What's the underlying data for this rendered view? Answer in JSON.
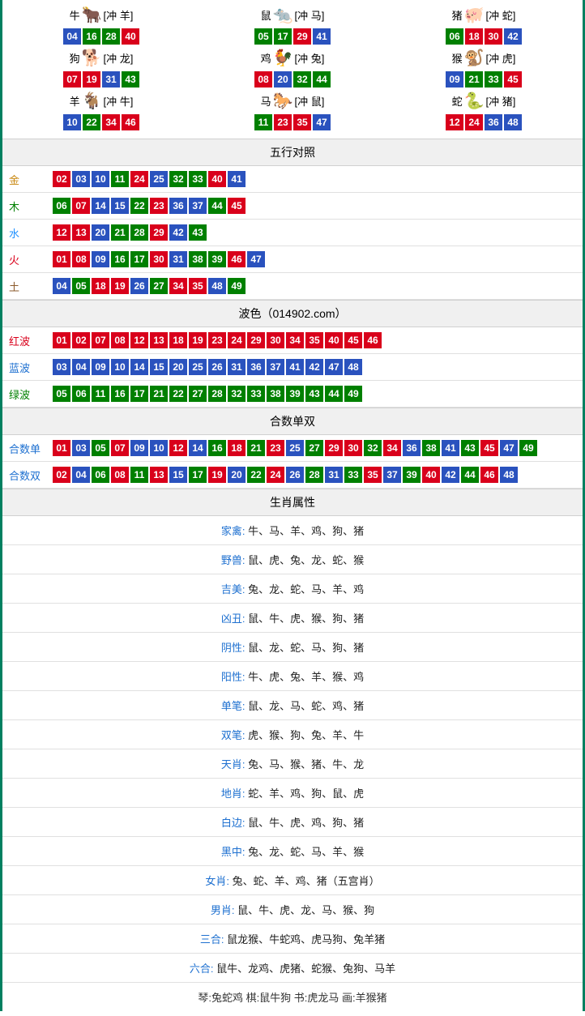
{
  "ball_colors": {
    "red": "#d9001b",
    "green": "#008000",
    "blue": "#2a52be"
  },
  "zodiac": [
    {
      "name": "牛",
      "icon": "🐂",
      "icon_color": "#c0392b",
      "clash": "[冲 羊]",
      "balls": [
        {
          "n": "04",
          "c": "blue"
        },
        {
          "n": "16",
          "c": "green"
        },
        {
          "n": "28",
          "c": "green"
        },
        {
          "n": "40",
          "c": "red"
        }
      ]
    },
    {
      "name": "鼠",
      "icon": "🐀",
      "icon_color": "#2c82c9",
      "clash": "[冲 马]",
      "balls": [
        {
          "n": "05",
          "c": "green"
        },
        {
          "n": "17",
          "c": "green"
        },
        {
          "n": "29",
          "c": "red"
        },
        {
          "n": "41",
          "c": "blue"
        }
      ]
    },
    {
      "name": "猪",
      "icon": "🐖",
      "icon_color": "#d96ba0",
      "clash": "[冲 蛇]",
      "balls": [
        {
          "n": "06",
          "c": "green"
        },
        {
          "n": "18",
          "c": "red"
        },
        {
          "n": "30",
          "c": "red"
        },
        {
          "n": "42",
          "c": "blue"
        }
      ]
    },
    {
      "name": "狗",
      "icon": "🐕",
      "icon_color": "#3498db",
      "clash": "[冲 龙]",
      "balls": [
        {
          "n": "07",
          "c": "red"
        },
        {
          "n": "19",
          "c": "red"
        },
        {
          "n": "31",
          "c": "blue"
        },
        {
          "n": "43",
          "c": "green"
        }
      ]
    },
    {
      "name": "鸡",
      "icon": "🐓",
      "icon_color": "#e67e22",
      "clash": "[冲 兔]",
      "balls": [
        {
          "n": "08",
          "c": "red"
        },
        {
          "n": "20",
          "c": "blue"
        },
        {
          "n": "32",
          "c": "green"
        },
        {
          "n": "44",
          "c": "green"
        }
      ]
    },
    {
      "name": "猴",
      "icon": "🐒",
      "icon_color": "#c0392b",
      "clash": "[冲 虎]",
      "balls": [
        {
          "n": "09",
          "c": "blue"
        },
        {
          "n": "21",
          "c": "green"
        },
        {
          "n": "33",
          "c": "green"
        },
        {
          "n": "45",
          "c": "red"
        }
      ]
    },
    {
      "name": "羊",
      "icon": "🐐",
      "icon_color": "#c8a52b",
      "clash": "[冲 牛]",
      "balls": [
        {
          "n": "10",
          "c": "blue"
        },
        {
          "n": "22",
          "c": "green"
        },
        {
          "n": "34",
          "c": "red"
        },
        {
          "n": "46",
          "c": "red"
        }
      ]
    },
    {
      "name": "马",
      "icon": "🐎",
      "icon_color": "#c0392b",
      "clash": "[冲 鼠]",
      "balls": [
        {
          "n": "11",
          "c": "green"
        },
        {
          "n": "23",
          "c": "red"
        },
        {
          "n": "35",
          "c": "red"
        },
        {
          "n": "47",
          "c": "blue"
        }
      ]
    },
    {
      "name": "蛇",
      "icon": "🐍",
      "icon_color": "#27ae60",
      "clash": "[冲 猪]",
      "balls": [
        {
          "n": "12",
          "c": "red"
        },
        {
          "n": "24",
          "c": "red"
        },
        {
          "n": "36",
          "c": "blue"
        },
        {
          "n": "48",
          "c": "blue"
        }
      ]
    }
  ],
  "sections": {
    "wuxing_title": "五行对照",
    "wuxing": [
      {
        "label": "金",
        "cls": "lbl-gold",
        "balls": [
          {
            "n": "02",
            "c": "red"
          },
          {
            "n": "03",
            "c": "blue"
          },
          {
            "n": "10",
            "c": "blue"
          },
          {
            "n": "11",
            "c": "green"
          },
          {
            "n": "24",
            "c": "red"
          },
          {
            "n": "25",
            "c": "blue"
          },
          {
            "n": "32",
            "c": "green"
          },
          {
            "n": "33",
            "c": "green"
          },
          {
            "n": "40",
            "c": "red"
          },
          {
            "n": "41",
            "c": "blue"
          }
        ]
      },
      {
        "label": "木",
        "cls": "lbl-wood",
        "balls": [
          {
            "n": "06",
            "c": "green"
          },
          {
            "n": "07",
            "c": "red"
          },
          {
            "n": "14",
            "c": "blue"
          },
          {
            "n": "15",
            "c": "blue"
          },
          {
            "n": "22",
            "c": "green"
          },
          {
            "n": "23",
            "c": "red"
          },
          {
            "n": "36",
            "c": "blue"
          },
          {
            "n": "37",
            "c": "blue"
          },
          {
            "n": "44",
            "c": "green"
          },
          {
            "n": "45",
            "c": "red"
          }
        ]
      },
      {
        "label": "水",
        "cls": "lbl-water",
        "balls": [
          {
            "n": "12",
            "c": "red"
          },
          {
            "n": "13",
            "c": "red"
          },
          {
            "n": "20",
            "c": "blue"
          },
          {
            "n": "21",
            "c": "green"
          },
          {
            "n": "28",
            "c": "green"
          },
          {
            "n": "29",
            "c": "red"
          },
          {
            "n": "42",
            "c": "blue"
          },
          {
            "n": "43",
            "c": "green"
          }
        ]
      },
      {
        "label": "火",
        "cls": "lbl-fire",
        "balls": [
          {
            "n": "01",
            "c": "red"
          },
          {
            "n": "08",
            "c": "red"
          },
          {
            "n": "09",
            "c": "blue"
          },
          {
            "n": "16",
            "c": "green"
          },
          {
            "n": "17",
            "c": "green"
          },
          {
            "n": "30",
            "c": "red"
          },
          {
            "n": "31",
            "c": "blue"
          },
          {
            "n": "38",
            "c": "green"
          },
          {
            "n": "39",
            "c": "green"
          },
          {
            "n": "46",
            "c": "red"
          },
          {
            "n": "47",
            "c": "blue"
          }
        ]
      },
      {
        "label": "土",
        "cls": "lbl-earth",
        "balls": [
          {
            "n": "04",
            "c": "blue"
          },
          {
            "n": "05",
            "c": "green"
          },
          {
            "n": "18",
            "c": "red"
          },
          {
            "n": "19",
            "c": "red"
          },
          {
            "n": "26",
            "c": "blue"
          },
          {
            "n": "27",
            "c": "green"
          },
          {
            "n": "34",
            "c": "red"
          },
          {
            "n": "35",
            "c": "red"
          },
          {
            "n": "48",
            "c": "blue"
          },
          {
            "n": "49",
            "c": "green"
          }
        ]
      }
    ],
    "bose_title": "波色（014902.com）",
    "bose": [
      {
        "label": "红波",
        "cls": "lbl-red",
        "balls": [
          {
            "n": "01",
            "c": "red"
          },
          {
            "n": "02",
            "c": "red"
          },
          {
            "n": "07",
            "c": "red"
          },
          {
            "n": "08",
            "c": "red"
          },
          {
            "n": "12",
            "c": "red"
          },
          {
            "n": "13",
            "c": "red"
          },
          {
            "n": "18",
            "c": "red"
          },
          {
            "n": "19",
            "c": "red"
          },
          {
            "n": "23",
            "c": "red"
          },
          {
            "n": "24",
            "c": "red"
          },
          {
            "n": "29",
            "c": "red"
          },
          {
            "n": "30",
            "c": "red"
          },
          {
            "n": "34",
            "c": "red"
          },
          {
            "n": "35",
            "c": "red"
          },
          {
            "n": "40",
            "c": "red"
          },
          {
            "n": "45",
            "c": "red"
          },
          {
            "n": "46",
            "c": "red"
          }
        ]
      },
      {
        "label": "蓝波",
        "cls": "lbl-blue",
        "balls": [
          {
            "n": "03",
            "c": "blue"
          },
          {
            "n": "04",
            "c": "blue"
          },
          {
            "n": "09",
            "c": "blue"
          },
          {
            "n": "10",
            "c": "blue"
          },
          {
            "n": "14",
            "c": "blue"
          },
          {
            "n": "15",
            "c": "blue"
          },
          {
            "n": "20",
            "c": "blue"
          },
          {
            "n": "25",
            "c": "blue"
          },
          {
            "n": "26",
            "c": "blue"
          },
          {
            "n": "31",
            "c": "blue"
          },
          {
            "n": "36",
            "c": "blue"
          },
          {
            "n": "37",
            "c": "blue"
          },
          {
            "n": "41",
            "c": "blue"
          },
          {
            "n": "42",
            "c": "blue"
          },
          {
            "n": "47",
            "c": "blue"
          },
          {
            "n": "48",
            "c": "blue"
          }
        ]
      },
      {
        "label": "绿波",
        "cls": "lbl-green",
        "balls": [
          {
            "n": "05",
            "c": "green"
          },
          {
            "n": "06",
            "c": "green"
          },
          {
            "n": "11",
            "c": "green"
          },
          {
            "n": "16",
            "c": "green"
          },
          {
            "n": "17",
            "c": "green"
          },
          {
            "n": "21",
            "c": "green"
          },
          {
            "n": "22",
            "c": "green"
          },
          {
            "n": "27",
            "c": "green"
          },
          {
            "n": "28",
            "c": "green"
          },
          {
            "n": "32",
            "c": "green"
          },
          {
            "n": "33",
            "c": "green"
          },
          {
            "n": "38",
            "c": "green"
          },
          {
            "n": "39",
            "c": "green"
          },
          {
            "n": "43",
            "c": "green"
          },
          {
            "n": "44",
            "c": "green"
          },
          {
            "n": "49",
            "c": "green"
          }
        ]
      }
    ],
    "heshu_title": "合数单双",
    "heshu": [
      {
        "label": "合数单",
        "cls": "lbl-blue",
        "balls": [
          {
            "n": "01",
            "c": "red"
          },
          {
            "n": "03",
            "c": "blue"
          },
          {
            "n": "05",
            "c": "green"
          },
          {
            "n": "07",
            "c": "red"
          },
          {
            "n": "09",
            "c": "blue"
          },
          {
            "n": "10",
            "c": "blue"
          },
          {
            "n": "12",
            "c": "red"
          },
          {
            "n": "14",
            "c": "blue"
          },
          {
            "n": "16",
            "c": "green"
          },
          {
            "n": "18",
            "c": "red"
          },
          {
            "n": "21",
            "c": "green"
          },
          {
            "n": "23",
            "c": "red"
          },
          {
            "n": "25",
            "c": "blue"
          },
          {
            "n": "27",
            "c": "green"
          },
          {
            "n": "29",
            "c": "red"
          },
          {
            "n": "30",
            "c": "red"
          },
          {
            "n": "32",
            "c": "green"
          },
          {
            "n": "34",
            "c": "red"
          },
          {
            "n": "36",
            "c": "blue"
          },
          {
            "n": "38",
            "c": "green"
          },
          {
            "n": "41",
            "c": "blue"
          },
          {
            "n": "43",
            "c": "green"
          },
          {
            "n": "45",
            "c": "red"
          },
          {
            "n": "47",
            "c": "blue"
          },
          {
            "n": "49",
            "c": "green"
          }
        ]
      },
      {
        "label": "合数双",
        "cls": "lbl-blue",
        "balls": [
          {
            "n": "02",
            "c": "red"
          },
          {
            "n": "04",
            "c": "blue"
          },
          {
            "n": "06",
            "c": "green"
          },
          {
            "n": "08",
            "c": "red"
          },
          {
            "n": "11",
            "c": "green"
          },
          {
            "n": "13",
            "c": "red"
          },
          {
            "n": "15",
            "c": "blue"
          },
          {
            "n": "17",
            "c": "green"
          },
          {
            "n": "19",
            "c": "red"
          },
          {
            "n": "20",
            "c": "blue"
          },
          {
            "n": "22",
            "c": "green"
          },
          {
            "n": "24",
            "c": "red"
          },
          {
            "n": "26",
            "c": "blue"
          },
          {
            "n": "28",
            "c": "green"
          },
          {
            "n": "31",
            "c": "blue"
          },
          {
            "n": "33",
            "c": "green"
          },
          {
            "n": "35",
            "c": "red"
          },
          {
            "n": "37",
            "c": "blue"
          },
          {
            "n": "39",
            "c": "green"
          },
          {
            "n": "40",
            "c": "red"
          },
          {
            "n": "42",
            "c": "blue"
          },
          {
            "n": "44",
            "c": "green"
          },
          {
            "n": "46",
            "c": "red"
          },
          {
            "n": "48",
            "c": "blue"
          }
        ]
      }
    ],
    "attr_title": "生肖属性",
    "attrs": [
      {
        "k": "家禽",
        "v": "牛、马、羊、鸡、狗、猪"
      },
      {
        "k": "野兽",
        "v": "鼠、虎、兔、龙、蛇、猴"
      },
      {
        "k": "吉美",
        "v": "兔、龙、蛇、马、羊、鸡"
      },
      {
        "k": "凶丑",
        "v": "鼠、牛、虎、猴、狗、猪"
      },
      {
        "k": "阴性",
        "v": "鼠、龙、蛇、马、狗、猪"
      },
      {
        "k": "阳性",
        "v": "牛、虎、兔、羊、猴、鸡"
      },
      {
        "k": "单笔",
        "v": "鼠、龙、马、蛇、鸡、猪"
      },
      {
        "k": "双笔",
        "v": "虎、猴、狗、兔、羊、牛"
      },
      {
        "k": "天肖",
        "v": "兔、马、猴、猪、牛、龙"
      },
      {
        "k": "地肖",
        "v": "蛇、羊、鸡、狗、鼠、虎"
      },
      {
        "k": "白边",
        "v": "鼠、牛、虎、鸡、狗、猪"
      },
      {
        "k": "黑中",
        "v": "兔、龙、蛇、马、羊、猴"
      },
      {
        "k": "女肖",
        "v": "兔、蛇、羊、鸡、猪（五宫肖）"
      },
      {
        "k": "男肖",
        "v": "鼠、牛、虎、龙、马、猴、狗"
      },
      {
        "k": "三合",
        "v": "鼠龙猴、牛蛇鸡、虎马狗、兔羊猪"
      },
      {
        "k": "六合",
        "v": "鼠牛、龙鸡、虎猪、蛇猴、兔狗、马羊"
      }
    ],
    "footer": "琴:兔蛇鸡   棋:鼠牛狗   书:虎龙马   画:羊猴猪"
  }
}
